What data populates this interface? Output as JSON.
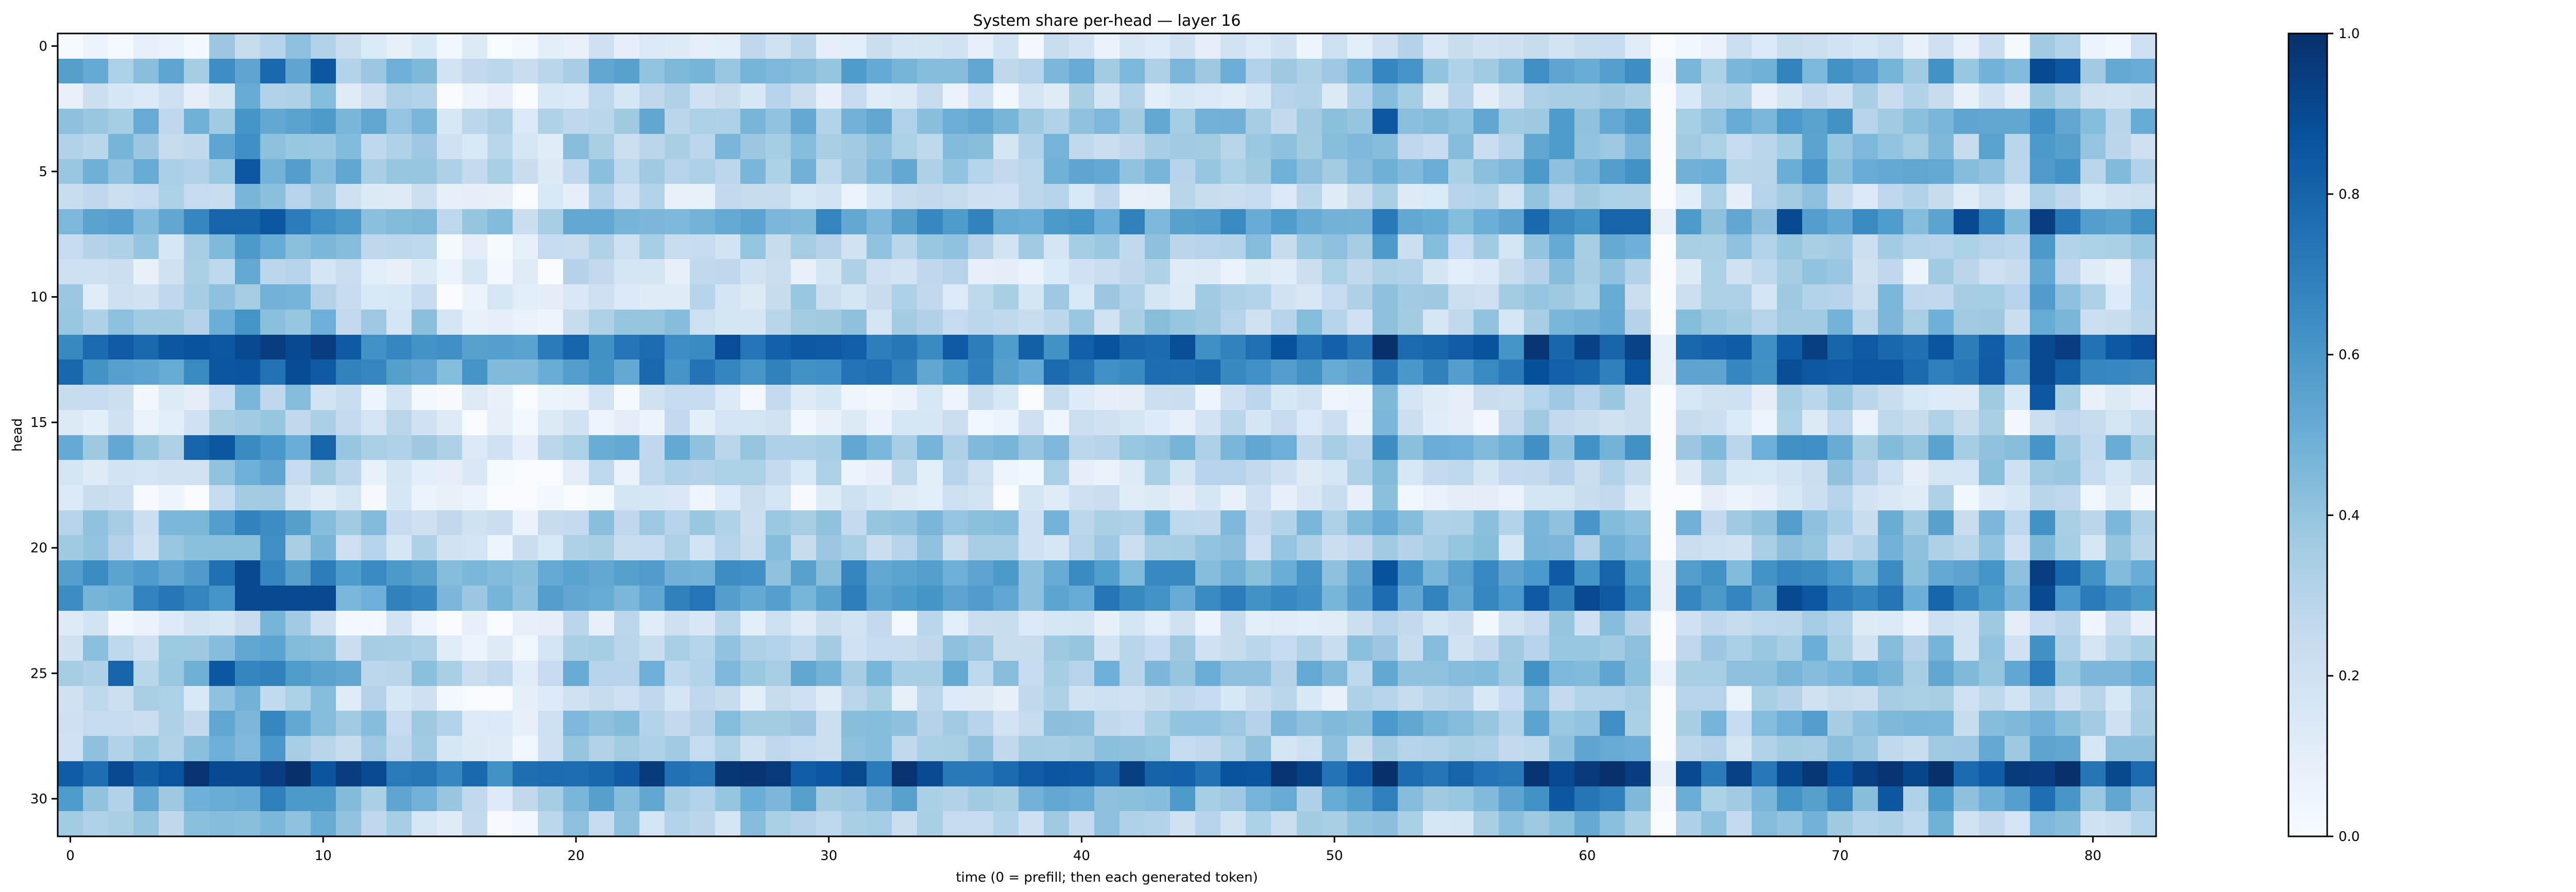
{
  "chart_data": {
    "type": "heatmap",
    "title": "System share per-head — layer 16",
    "xlabel": "time (0 = prefill; then each generated token)",
    "ylabel": "head",
    "n_cols": 83,
    "n_rows": 32,
    "x_ticks": [
      0,
      10,
      20,
      30,
      40,
      50,
      60,
      70,
      80
    ],
    "y_ticks": [
      0,
      5,
      10,
      15,
      20,
      25,
      30
    ],
    "colorbar": {
      "min": 0.0,
      "max": 1.0,
      "ticks": [
        "0.0",
        "0.2",
        "0.4",
        "0.6",
        "0.8",
        "1.0"
      ]
    },
    "colormap": [
      "#f7fbff",
      "#deebf7",
      "#c6dbef",
      "#9ecae1",
      "#6baed6",
      "#4292c6",
      "#2171b5",
      "#08519c",
      "#08306b"
    ],
    "grid": false,
    "legend": "colorbar-right",
    "row_base": [
      0.15,
      0.45,
      0.2,
      0.4,
      0.35,
      0.4,
      0.2,
      0.55,
      0.3,
      0.2,
      0.25,
      0.3,
      0.75,
      0.65,
      0.15,
      0.15,
      0.4,
      0.2,
      0.1,
      0.35,
      0.3,
      0.55,
      0.6,
      0.15,
      0.3,
      0.4,
      0.2,
      0.35,
      0.3,
      0.85,
      0.45,
      0.3
    ],
    "col_mod": {
      "6": 0.1,
      "7": 0.2,
      "8": 0.2,
      "9": 0.15,
      "10": 0.1,
      "15": -0.15,
      "16": -0.15,
      "17": -0.2,
      "18": -0.2,
      "19": -0.15,
      "37": -0.05,
      "38": -0.05,
      "52": 0.2,
      "53": 0.05,
      "58": 0.1,
      "59": 0.15,
      "60": 0.15,
      "61": 0.15,
      "62": 0.1,
      "63": -0.45,
      "68": 0.1,
      "69": 0.1,
      "70": 0.1,
      "72": 0.1,
      "74": 0.1,
      "76": 0.1,
      "78": 0.2,
      "79": 0.1
    },
    "bright_cells": [
      [
        1,
        10,
        0.85
      ],
      [
        1,
        78,
        0.9
      ],
      [
        1,
        79,
        0.85
      ],
      [
        3,
        52,
        0.85
      ],
      [
        5,
        7,
        0.85
      ],
      [
        7,
        6,
        0.8
      ],
      [
        7,
        7,
        0.8
      ],
      [
        7,
        8,
        0.85
      ],
      [
        7,
        61,
        0.8
      ],
      [
        7,
        62,
        0.8
      ],
      [
        7,
        68,
        0.9
      ],
      [
        7,
        75,
        0.9
      ],
      [
        7,
        78,
        0.95
      ],
      [
        12,
        4,
        0.85
      ],
      [
        12,
        6,
        0.85
      ],
      [
        12,
        7,
        0.9
      ],
      [
        12,
        8,
        0.95
      ],
      [
        12,
        9,
        0.9
      ],
      [
        12,
        10,
        0.95
      ],
      [
        12,
        61,
        0.8
      ],
      [
        12,
        78,
        0.9
      ],
      [
        12,
        79,
        0.95
      ],
      [
        13,
        71,
        0.85
      ],
      [
        13,
        72,
        0.85
      ],
      [
        13,
        78,
        0.9
      ],
      [
        14,
        78,
        0.85
      ],
      [
        16,
        5,
        0.8
      ],
      [
        16,
        6,
        0.85
      ],
      [
        16,
        10,
        0.8
      ],
      [
        21,
        7,
        0.9
      ],
      [
        21,
        78,
        0.95
      ],
      [
        22,
        7,
        0.9
      ],
      [
        22,
        8,
        0.9
      ],
      [
        22,
        9,
        0.9
      ],
      [
        22,
        10,
        0.9
      ],
      [
        22,
        60,
        0.9
      ],
      [
        22,
        68,
        0.9
      ],
      [
        22,
        69,
        0.85
      ],
      [
        22,
        78,
        0.9
      ],
      [
        25,
        2,
        0.8
      ],
      [
        25,
        6,
        0.85
      ],
      [
        29,
        2,
        0.9
      ],
      [
        29,
        6,
        0.9
      ],
      [
        29,
        7,
        0.9
      ],
      [
        29,
        8,
        0.95
      ],
      [
        29,
        11,
        0.95
      ],
      [
        29,
        59,
        0.9
      ],
      [
        29,
        62,
        0.95
      ],
      [
        29,
        64,
        0.9
      ],
      [
        29,
        68,
        0.9
      ],
      [
        29,
        78,
        0.95
      ],
      [
        30,
        59,
        0.85
      ],
      [
        30,
        72,
        0.85
      ]
    ]
  }
}
